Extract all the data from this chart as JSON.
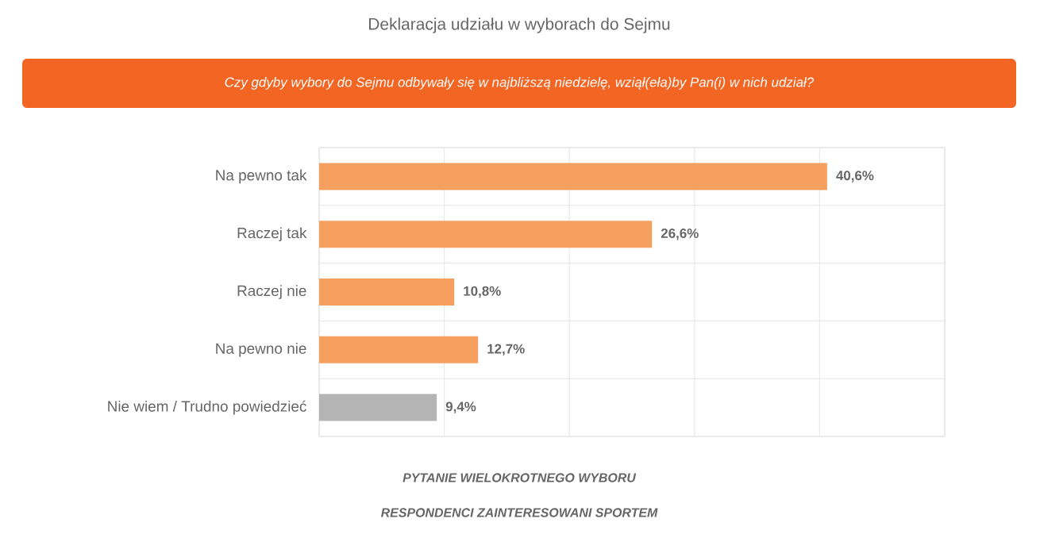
{
  "chart_data": {
    "type": "bar",
    "orientation": "horizontal",
    "title": "Deklaracja udziału w wyborach do Sejmu",
    "subtitle": "Czy gdyby wybory do Sejmu odbywały się w najbliższą niedzielę, wziął(eła)by Pan(i) w nich udział?",
    "categories": [
      "Na pewno tak",
      "Raczej tak",
      "Raczej nie",
      "Na pewno nie",
      "Nie wiem / Trudno powiedzieć"
    ],
    "values": [
      40.6,
      26.6,
      10.8,
      12.7,
      9.4
    ],
    "value_labels": [
      "40,6%",
      "26,6%",
      "10,8%",
      "12,7%",
      "9,4%"
    ],
    "colors": [
      "#f5a05e",
      "#f5a05e",
      "#f5a05e",
      "#f5a05e",
      "#b4b4b4"
    ],
    "xlim": [
      0,
      50
    ],
    "xticks": [
      {
        "value": 0,
        "label": null
      },
      {
        "value": 10,
        "label": null
      },
      {
        "value": 20,
        "label": null
      },
      {
        "value": 30,
        "label": null
      },
      {
        "value": 40,
        "label": null
      },
      {
        "value": 50,
        "label": null
      }
    ],
    "grid": true,
    "tick_labels": "y",
    "annotations": [
      "PYTANIE WIELOKROTNEGO WYBORU",
      "RESPONDENCI ZAINTERESOWANI SPORTEM"
    ]
  }
}
